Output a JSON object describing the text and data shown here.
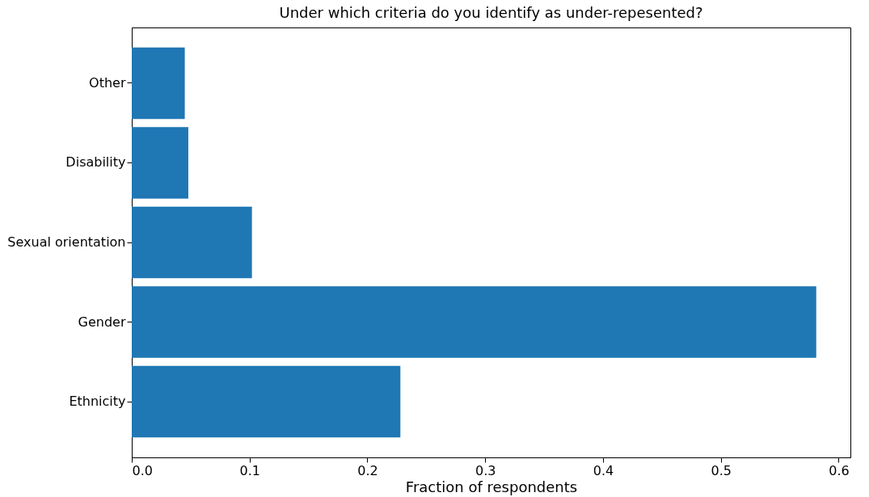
{
  "chart_data": {
    "type": "bar",
    "orientation": "horizontal",
    "title": "Under which criteria do you identify as under-repesented?",
    "xlabel": "Fraction of respondents",
    "categories": [
      "Other",
      "Disability",
      "Sexual orientation",
      "Gender",
      "Ethnicity"
    ],
    "values": [
      0.045,
      0.048,
      0.102,
      0.581,
      0.228
    ],
    "color": "#1f77b4",
    "xlim": [
      0,
      0.61
    ],
    "xticks": [
      {
        "value": 0,
        "label": "0.0"
      },
      0.1,
      0.2,
      0.3,
      0.4,
      0.5,
      0.6
    ],
    "grid": false
  }
}
